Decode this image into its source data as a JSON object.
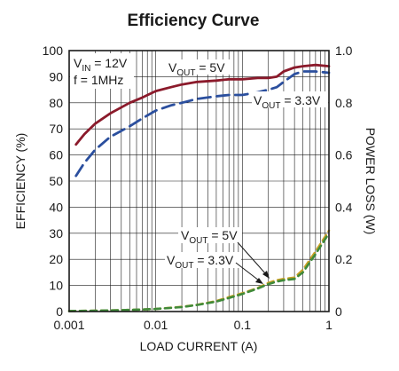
{
  "chart_data": {
    "type": "line",
    "title": "Efficiency Curve",
    "xlabel": "LOAD CURRENT (A)",
    "ylabel": "EFFICIENCY (%)",
    "y2label": "POWER LOSS (W)",
    "xscale": "log",
    "xlim": [
      0.001,
      1
    ],
    "ylim": [
      0,
      100
    ],
    "y2lim": [
      0,
      1.0
    ],
    "grid": true,
    "x_ticks": [
      "0.001",
      "0.01",
      "0.1",
      "1"
    ],
    "y_ticks": [
      "0",
      "10",
      "20",
      "30",
      "40",
      "50",
      "60",
      "70",
      "80",
      "90",
      "100"
    ],
    "y2_ticks": [
      "0",
      "0.2",
      "0.4",
      "0.6",
      "0.8",
      "1.0"
    ],
    "conditions": {
      "vin_label": "VIN = 12V",
      "freq_label": "f = 1MHz"
    },
    "series": [
      {
        "name": "VOUT = 5V",
        "axis": "left",
        "style": "solid",
        "color": "#8b1a2b",
        "x": [
          0.0012,
          0.0015,
          0.002,
          0.003,
          0.005,
          0.007,
          0.01,
          0.015,
          0.02,
          0.03,
          0.05,
          0.07,
          0.1,
          0.15,
          0.2,
          0.25,
          0.3,
          0.4,
          0.5,
          0.7,
          1.0
        ],
        "y": [
          64,
          68,
          72,
          76,
          80,
          82,
          84.5,
          86,
          87,
          88,
          88.5,
          89,
          89,
          89.5,
          89.5,
          90,
          92,
          93.5,
          94,
          94.5,
          94
        ]
      },
      {
        "name": "VOUT = 3.3V",
        "axis": "left",
        "style": "dashed",
        "color": "#2b4f9e",
        "x": [
          0.0012,
          0.0015,
          0.002,
          0.003,
          0.005,
          0.007,
          0.01,
          0.015,
          0.02,
          0.03,
          0.05,
          0.07,
          0.1,
          0.15,
          0.2,
          0.25,
          0.3,
          0.4,
          0.5,
          0.7,
          1.0
        ],
        "y": [
          52,
          57,
          62,
          67,
          71,
          74,
          77,
          79,
          80,
          81.5,
          82.5,
          83,
          83,
          84,
          85,
          86,
          88,
          91,
          92,
          92,
          91.5
        ]
      },
      {
        "name": "VOUT = 5V",
        "axis": "right",
        "style": "dashed",
        "color": "#c9a227",
        "x": [
          0.001,
          0.002,
          0.005,
          0.01,
          0.02,
          0.03,
          0.05,
          0.07,
          0.1,
          0.15,
          0.2,
          0.25,
          0.3,
          0.4,
          0.5,
          0.7,
          1.0
        ],
        "y": [
          0.002,
          0.003,
          0.006,
          0.01,
          0.018,
          0.026,
          0.04,
          0.055,
          0.07,
          0.09,
          0.11,
          0.12,
          0.125,
          0.13,
          0.16,
          0.23,
          0.31
        ]
      },
      {
        "name": "VOUT = 3.3V",
        "axis": "right",
        "style": "dashed",
        "color": "#3f8a3a",
        "x": [
          0.001,
          0.002,
          0.005,
          0.01,
          0.02,
          0.03,
          0.05,
          0.07,
          0.1,
          0.15,
          0.2,
          0.25,
          0.3,
          0.4,
          0.5,
          0.7,
          1.0
        ],
        "y": [
          0.002,
          0.003,
          0.006,
          0.01,
          0.017,
          0.025,
          0.038,
          0.052,
          0.067,
          0.088,
          0.105,
          0.115,
          0.12,
          0.125,
          0.15,
          0.22,
          0.3
        ]
      }
    ]
  }
}
